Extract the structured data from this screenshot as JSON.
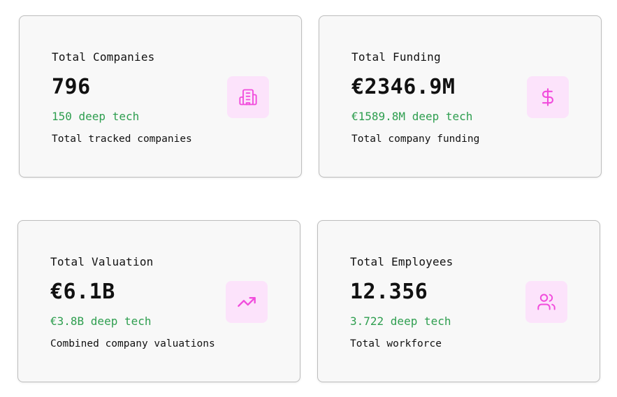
{
  "colors": {
    "accent_icon": "#f14cdc",
    "icon_bg": "#fce3fb",
    "deep_tech_text": "#2e9e4f"
  },
  "cards": [
    {
      "label": "Total Companies",
      "value": "796",
      "deep_tech": "150 deep tech",
      "description": "Total tracked companies",
      "icon": "building-icon"
    },
    {
      "label": "Total Funding",
      "value": "€2346.9M",
      "deep_tech": "€1589.8M deep tech",
      "description": "Total company funding",
      "icon": "dollar-icon"
    },
    {
      "label": "Total Valuation",
      "value": "€6.1B",
      "deep_tech": "€3.8B deep tech",
      "description": "Combined company valuations",
      "icon": "trending-up-icon"
    },
    {
      "label": "Total Employees",
      "value": "12.356",
      "deep_tech": "3.722 deep tech",
      "description": "Total workforce",
      "icon": "users-icon"
    }
  ]
}
